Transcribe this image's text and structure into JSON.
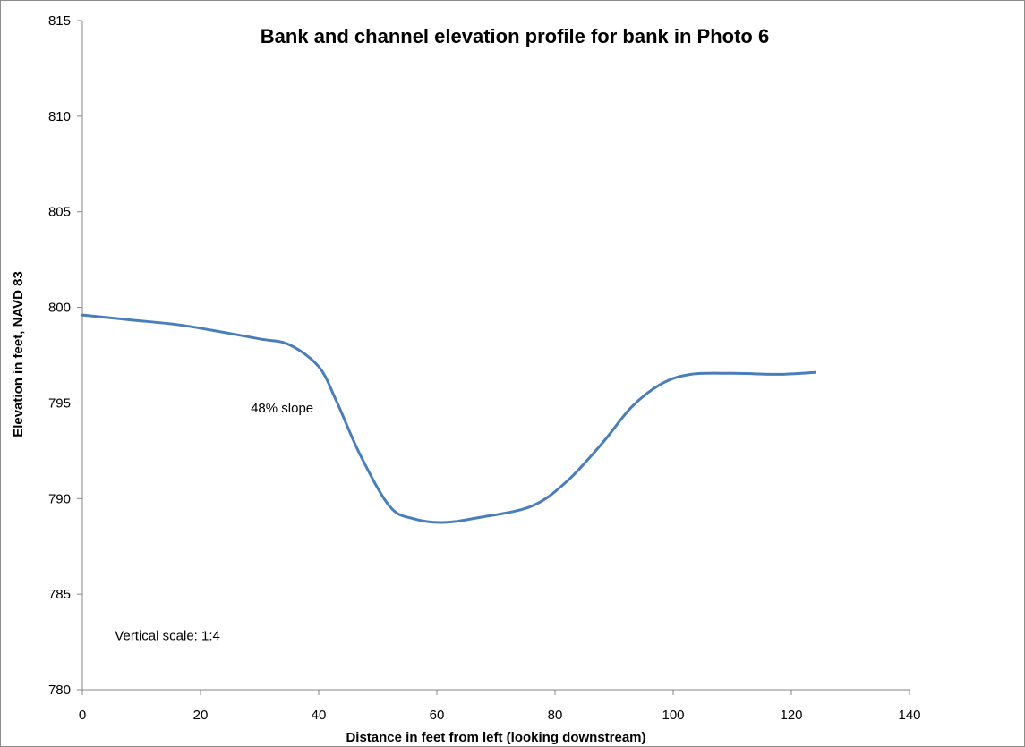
{
  "chart_data": {
    "type": "line",
    "title": "Bank and channel elevation profile for bank in Photo 6",
    "xlabel": "Distance in feet from left (looking downstream)",
    "ylabel": "Elevation in feet, NAVD 83",
    "xlim": [
      0,
      140
    ],
    "ylim": [
      780,
      815
    ],
    "xticks": [
      0,
      20,
      40,
      60,
      80,
      100,
      120,
      140
    ],
    "yticks": [
      780,
      785,
      790,
      795,
      800,
      805,
      810,
      815
    ],
    "grid": false,
    "legend": "none",
    "line_color": "#4a7ebb",
    "series": [
      {
        "x": [
          0,
          8,
          16,
          22,
          30,
          35,
          40,
          43,
          47,
          52,
          56,
          61,
          67,
          76,
          82,
          88,
          93,
          98,
          103,
          110,
          118,
          124
        ],
        "y": [
          799.6,
          799.35,
          799.1,
          798.8,
          798.35,
          798.05,
          796.9,
          795.1,
          792.3,
          789.6,
          788.95,
          788.75,
          789.0,
          789.6,
          790.9,
          792.9,
          794.8,
          796.0,
          796.5,
          796.55,
          796.5,
          796.6
        ]
      }
    ],
    "annotations": [
      {
        "text": "48% slope",
        "x": 28.5,
        "y": 794.5
      },
      {
        "text": "Vertical scale: 1:4",
        "x": 5.5,
        "y": 782.6
      }
    ]
  }
}
